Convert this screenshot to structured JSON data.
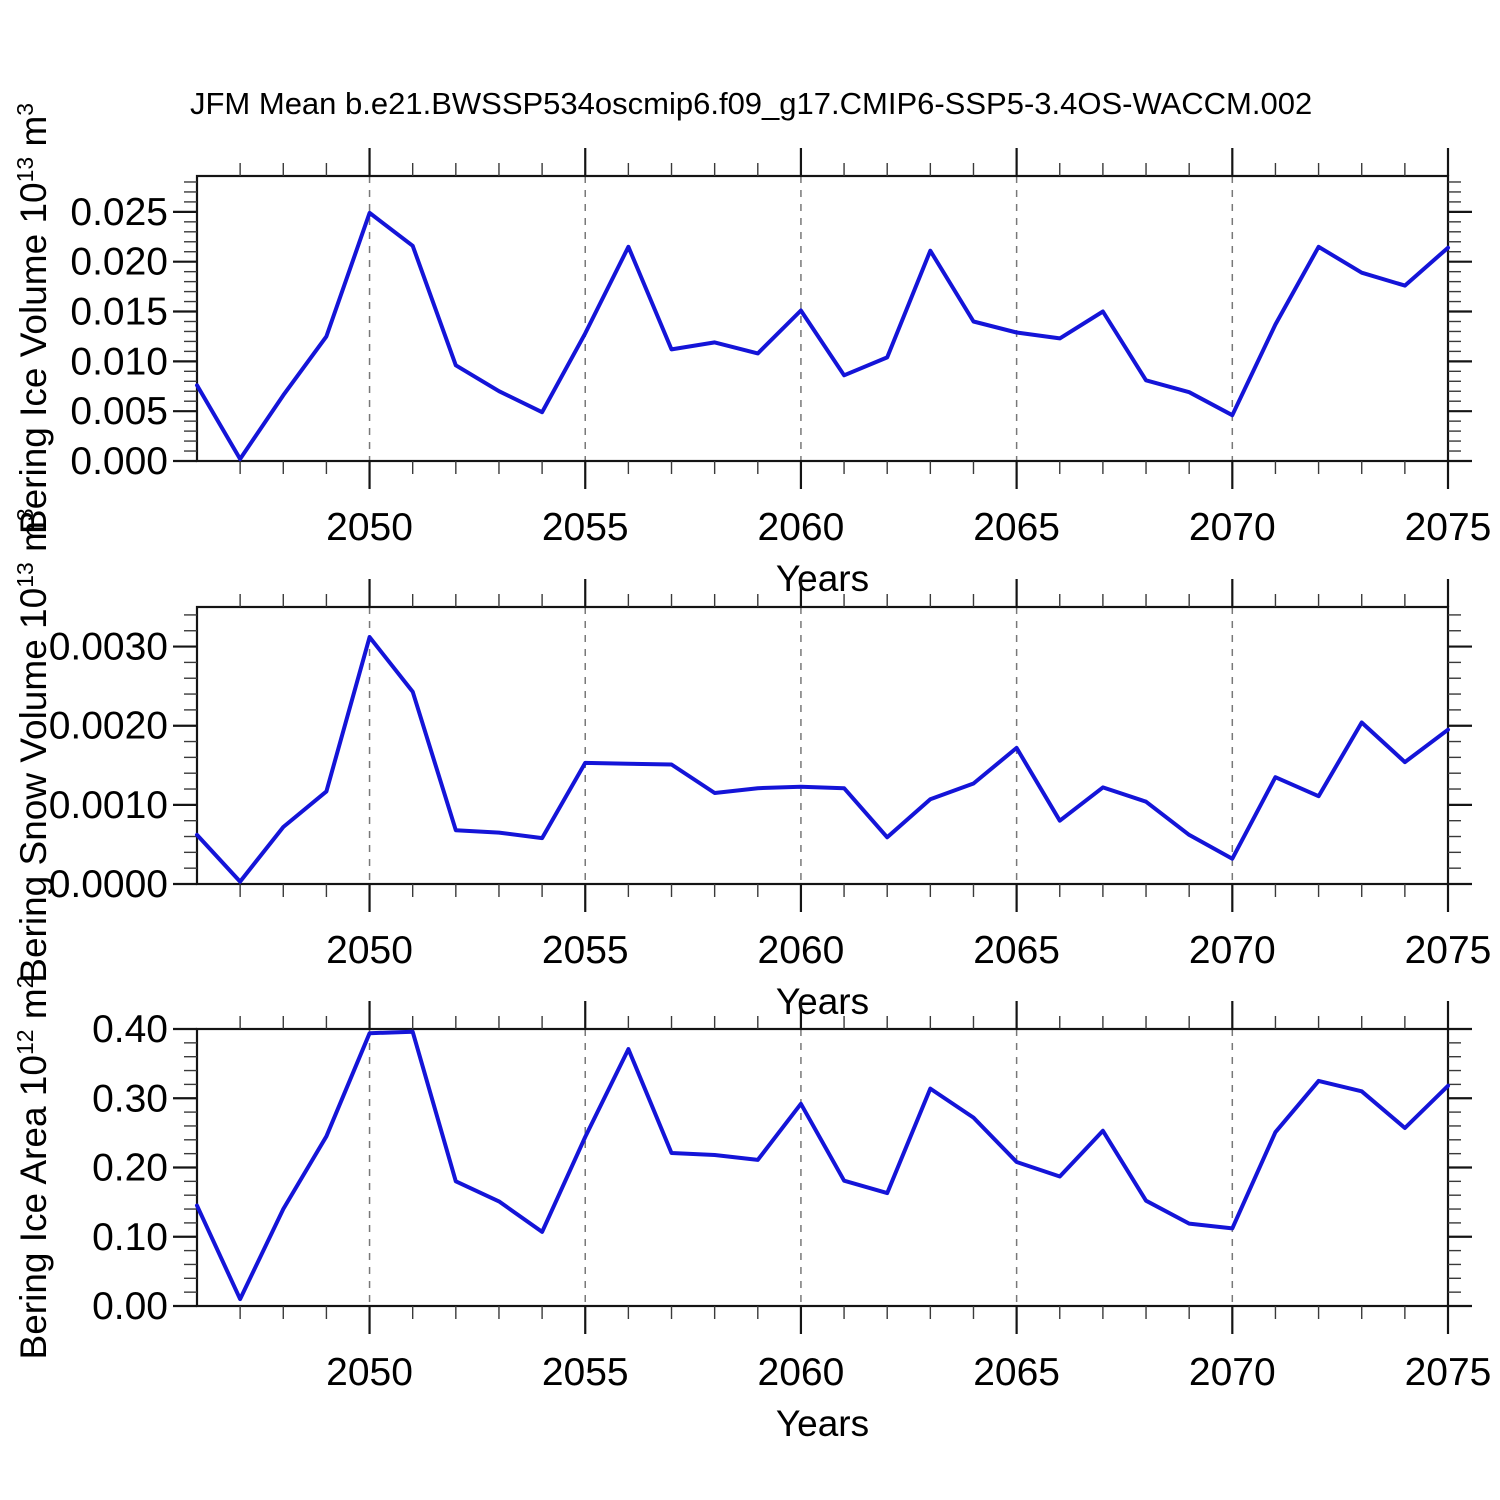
{
  "title": "JFM Mean b.e21.BWSSP534oscmip6.f09_g17.CMIP6-SSP5-3.4OS-WACCM.002",
  "colors": {
    "line": "#1414d8",
    "frame": "#141414",
    "major_tick": "#141414",
    "minor_tick": "#3a3a3a",
    "gridline": "#787878",
    "text": "#000000",
    "background": "#ffffff"
  },
  "axis_x": {
    "label": "Years",
    "min": 2046,
    "max": 2075,
    "major_ticks": [
      2050,
      2055,
      2060,
      2065,
      2070,
      2075
    ],
    "tick_labels": [
      "2050",
      "2055",
      "2060",
      "2065",
      "2070",
      "2075"
    ],
    "minor_step": 1,
    "gridlines": [
      2050,
      2055,
      2060,
      2065,
      2070
    ]
  },
  "chart_data": [
    {
      "type": "line",
      "name": "bering-ice-volume",
      "ylabel": "Bering Ice Volume 10^13 m^3",
      "ylabel_parts": [
        {
          "t": "Bering Ice Volume 10"
        },
        {
          "t": "13",
          "sup": true
        },
        {
          "t": " m"
        },
        {
          "t": "3",
          "sup": true
        }
      ],
      "xlabel": "Years",
      "x": [
        2046,
        2047,
        2048,
        2049,
        2050,
        2051,
        2052,
        2053,
        2054,
        2055,
        2056,
        2057,
        2058,
        2059,
        2060,
        2061,
        2062,
        2063,
        2064,
        2065,
        2066,
        2067,
        2068,
        2069,
        2070,
        2071,
        2072,
        2073,
        2074,
        2075
      ],
      "values": [
        0.0076,
        0.0002,
        0.0066,
        0.0125,
        0.0249,
        0.0216,
        0.0096,
        0.007,
        0.0049,
        0.0128,
        0.0215,
        0.0112,
        0.0119,
        0.0108,
        0.0151,
        0.0086,
        0.0104,
        0.0211,
        0.014,
        0.0129,
        0.0123,
        0.015,
        0.0081,
        0.0069,
        0.0046,
        0.0137,
        0.0215,
        0.0189,
        0.0176,
        0.0214
      ],
      "ylim": [
        0,
        0.0286
      ],
      "yticks": [
        {
          "v": 0.0,
          "label": "0.000"
        },
        {
          "v": 0.005,
          "label": "0.005"
        },
        {
          "v": 0.01,
          "label": "0.010"
        },
        {
          "v": 0.015,
          "label": "0.015"
        },
        {
          "v": 0.02,
          "label": "0.020"
        },
        {
          "v": 0.025,
          "label": "0.025"
        }
      ],
      "y_minor_step": 0.001,
      "grid": false,
      "legend": "none"
    },
    {
      "type": "line",
      "name": "bering-snow-volume",
      "ylabel": "Bering Snow Volume 10^13 m^3",
      "ylabel_parts": [
        {
          "t": "Bering Snow Volume 10"
        },
        {
          "t": "13",
          "sup": true
        },
        {
          "t": " m"
        },
        {
          "t": "3",
          "sup": true
        }
      ],
      "xlabel": "Years",
      "x": [
        2046,
        2047,
        2048,
        2049,
        2050,
        2051,
        2052,
        2053,
        2054,
        2055,
        2056,
        2057,
        2058,
        2059,
        2060,
        2061,
        2062,
        2063,
        2064,
        2065,
        2066,
        2067,
        2068,
        2069,
        2070,
        2071,
        2072,
        2073,
        2074,
        2075
      ],
      "values": [
        0.00062,
        3e-05,
        0.00072,
        0.00117,
        0.00312,
        0.00243,
        0.00068,
        0.00065,
        0.00058,
        0.00153,
        0.00152,
        0.00151,
        0.00115,
        0.00121,
        0.00123,
        0.00121,
        0.00059,
        0.00107,
        0.00127,
        0.00172,
        0.0008,
        0.00122,
        0.00104,
        0.00062,
        0.00032,
        0.00135,
        0.00111,
        0.00204,
        0.00154,
        0.00195
      ],
      "ylim": [
        0,
        0.0035
      ],
      "yticks": [
        {
          "v": 0.0,
          "label": "0.0000"
        },
        {
          "v": 0.001,
          "label": "0.0010"
        },
        {
          "v": 0.002,
          "label": "0.0020"
        },
        {
          "v": 0.003,
          "label": "0.0030"
        }
      ],
      "y_minor_step": 0.0002,
      "grid": false,
      "legend": "none"
    },
    {
      "type": "line",
      "name": "bering-ice-area",
      "ylabel": "Bering Ice Area 10^12 m^2",
      "ylabel_parts": [
        {
          "t": "Bering Ice Area 10"
        },
        {
          "t": "12",
          "sup": true
        },
        {
          "t": " m"
        },
        {
          "t": "2",
          "sup": true
        }
      ],
      "xlabel": "Years",
      "x": [
        2046,
        2047,
        2048,
        2049,
        2050,
        2051,
        2052,
        2053,
        2054,
        2055,
        2056,
        2057,
        2058,
        2059,
        2060,
        2061,
        2062,
        2063,
        2064,
        2065,
        2066,
        2067,
        2068,
        2069,
        2070,
        2071,
        2072,
        2073,
        2074,
        2075
      ],
      "values": [
        0.145,
        0.01,
        0.14,
        0.245,
        0.394,
        0.396,
        0.18,
        0.151,
        0.107,
        0.244,
        0.371,
        0.221,
        0.218,
        0.211,
        0.292,
        0.181,
        0.163,
        0.314,
        0.272,
        0.208,
        0.187,
        0.253,
        0.152,
        0.119,
        0.112,
        0.251,
        0.325,
        0.31,
        0.257,
        0.318
      ],
      "ylim": [
        0,
        0.4
      ],
      "yticks": [
        {
          "v": 0.0,
          "label": "0.00"
        },
        {
          "v": 0.1,
          "label": "0.10"
        },
        {
          "v": 0.2,
          "label": "0.20"
        },
        {
          "v": 0.3,
          "label": "0.30"
        },
        {
          "v": 0.4,
          "label": "0.40"
        }
      ],
      "y_minor_step": 0.02,
      "grid": false,
      "legend": "none"
    }
  ]
}
